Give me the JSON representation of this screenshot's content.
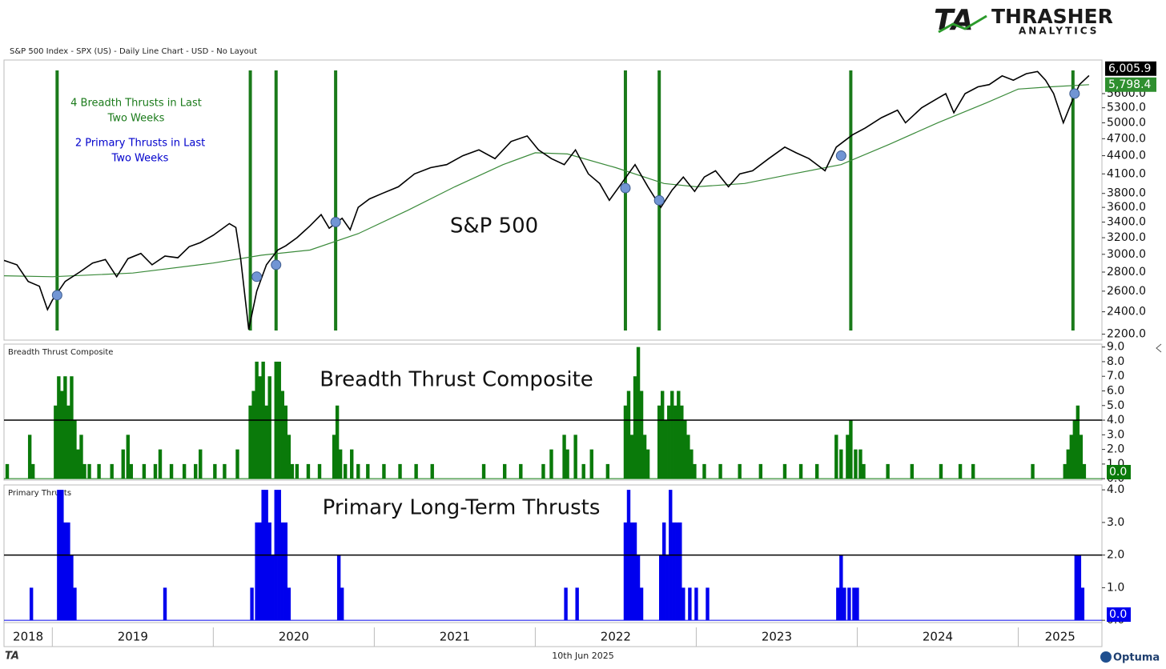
{
  "header": {
    "subtitle": "S&P 500 Index - SPX (US) - Daily Line Chart - USD - No Layout",
    "logo_mark": "TA",
    "logo": "THRASHER",
    "logo_sub": "ANALYTICS"
  },
  "chart_data": [
    {
      "type": "line",
      "title": "S&P 500",
      "log_scale": true,
      "annotations": [
        {
          "lines": [
            "4 Breadth Thrusts in Last",
            "Two Weeks"
          ],
          "color": "#1a7a1a"
        },
        {
          "lines": [
            "2 Primary Thrusts in Last",
            "Two Weeks"
          ],
          "color": "#0000cc"
        }
      ],
      "xlim": [
        2018.7,
        2025.52
      ],
      "ylim": [
        2150,
        6380
      ],
      "yticks": [
        {
          "value": 2200,
          "label": "2200.0"
        },
        {
          "value": 2400,
          "label": "2400.0"
        },
        {
          "value": 2600,
          "label": "2600.0"
        },
        {
          "value": 2800,
          "label": "2800.0"
        },
        {
          "value": 3000,
          "label": "3000.0"
        },
        {
          "value": 3200,
          "label": "3200.0"
        },
        {
          "value": 3400,
          "label": "3400.0"
        },
        {
          "value": 3600,
          "label": "3600.0"
        },
        {
          "value": 3800,
          "label": "3800.0"
        },
        {
          "value": 4100,
          "label": "4100.0"
        },
        {
          "value": 4400,
          "label": "4400.0"
        },
        {
          "value": 4700,
          "label": "4700.0"
        },
        {
          "value": 5000,
          "label": "5000.0"
        },
        {
          "value": 5300,
          "label": "5300.0"
        },
        {
          "value": 5600,
          "label": "5600.0"
        }
      ],
      "series": [
        {
          "color": "#000000",
          "badge_color": "#000000",
          "end_label": "6,005.9",
          "x": [
            2018.7,
            2018.78,
            2018.85,
            2018.92,
            2018.97,
            2019.0,
            2019.08,
            2019.17,
            2019.25,
            2019.33,
            2019.4,
            2019.47,
            2019.55,
            2019.62,
            2019.7,
            2019.78,
            2019.85,
            2019.92,
            2020.0,
            2020.1,
            2020.14,
            2020.17,
            2020.22,
            2020.27,
            2020.33,
            2020.4,
            2020.45,
            2020.52,
            2020.6,
            2020.67,
            2020.72,
            2020.8,
            2020.85,
            2020.9,
            2020.97,
            2021.05,
            2021.15,
            2021.25,
            2021.35,
            2021.45,
            2021.55,
            2021.65,
            2021.75,
            2021.85,
            2021.95,
            2022.02,
            2022.1,
            2022.18,
            2022.25,
            2022.33,
            2022.4,
            2022.46,
            2022.55,
            2022.62,
            2022.7,
            2022.78,
            2022.85,
            2022.92,
            2022.99,
            2023.05,
            2023.12,
            2023.2,
            2023.27,
            2023.35,
            2023.45,
            2023.55,
            2023.62,
            2023.7,
            2023.8,
            2023.87,
            2023.97,
            2024.05,
            2024.15,
            2024.25,
            2024.3,
            2024.4,
            2024.5,
            2024.55,
            2024.6,
            2024.67,
            2024.75,
            2024.82,
            2024.9,
            2024.97,
            2025.05,
            2025.12,
            2025.17,
            2025.22,
            2025.28,
            2025.33,
            2025.38,
            2025.44
          ],
          "values": [
            2930,
            2880,
            2700,
            2650,
            2420,
            2510,
            2700,
            2800,
            2900,
            2940,
            2750,
            2950,
            3010,
            2880,
            2980,
            2960,
            3090,
            3140,
            3230,
            3380,
            3330,
            2950,
            2240,
            2600,
            2880,
            3050,
            3100,
            3200,
            3350,
            3500,
            3320,
            3450,
            3300,
            3600,
            3720,
            3800,
            3900,
            4100,
            4200,
            4250,
            4400,
            4500,
            4350,
            4650,
            4750,
            4500,
            4350,
            4250,
            4500,
            4100,
            3950,
            3700,
            4000,
            4250,
            3900,
            3600,
            3850,
            4050,
            3830,
            4050,
            4150,
            3900,
            4100,
            4150,
            4350,
            4550,
            4450,
            4350,
            4150,
            4550,
            4770,
            4900,
            5100,
            5250,
            5000,
            5300,
            5500,
            5600,
            5200,
            5600,
            5750,
            5800,
            6000,
            5900,
            6050,
            6100,
            5900,
            5600,
            5000,
            5400,
            5800,
            6005.9
          ]
        },
        {
          "color": "#3a8a3a",
          "badge_color": "#2f8f2f",
          "end_label": "5,798.4",
          "x": [
            2018.7,
            2019.0,
            2019.5,
            2020.0,
            2020.3,
            2020.6,
            2020.9,
            2021.2,
            2021.5,
            2021.8,
            2022.0,
            2022.2,
            2022.5,
            2022.8,
            2023.0,
            2023.3,
            2023.6,
            2023.9,
            2024.2,
            2024.5,
            2024.8,
            2025.0,
            2025.2,
            2025.44
          ],
          "values": [
            2760,
            2750,
            2790,
            2900,
            2990,
            3050,
            3250,
            3550,
            3900,
            4250,
            4450,
            4430,
            4200,
            3950,
            3900,
            3950,
            4100,
            4250,
            4600,
            5000,
            5400,
            5700,
            5750,
            5798.4
          ]
        }
      ],
      "thrusts": {
        "color": "#1a7a1a",
        "dot_color": "#7195d4",
        "x": [
          2019.03,
          2020.27,
          2020.39,
          2020.76,
          2022.56,
          2022.77,
          2023.9,
          2025.35
        ],
        "values": [
          2560,
          2750,
          2880,
          3400,
          3880,
          3700,
          4400,
          5600
        ],
        "line_x": [
          2019.03,
          2020.23,
          2020.39,
          2020.76,
          2022.56,
          2022.77,
          2023.96,
          2025.34
        ]
      }
    },
    {
      "type": "bar",
      "title": "Breadth Thrust Composite",
      "label": "Breadth Thrust Composite",
      "color": "#0a7a0a",
      "threshold": 4,
      "end_label": "0.0",
      "xlim": [
        2018.7,
        2025.52
      ],
      "ylim": [
        -0.1,
        9.2
      ],
      "yticks": [
        {
          "value": 0,
          "label": "0.0"
        },
        {
          "value": 1,
          "label": "1.0"
        },
        {
          "value": 2,
          "label": "2.0"
        },
        {
          "value": 3,
          "label": "3.0"
        },
        {
          "value": 4,
          "label": "4.0"
        },
        {
          "value": 5,
          "label": "5.0"
        },
        {
          "value": 6,
          "label": "6.0"
        },
        {
          "value": 7,
          "label": "7.0"
        },
        {
          "value": 8,
          "label": "8.0"
        },
        {
          "value": 9,
          "label": "9.0"
        }
      ],
      "x": [
        2018.72,
        2018.86,
        2018.88,
        2019.02,
        2019.04,
        2019.06,
        2019.08,
        2019.1,
        2019.12,
        2019.14,
        2019.16,
        2019.18,
        2019.2,
        2019.23,
        2019.29,
        2019.37,
        2019.44,
        2019.47,
        2019.49,
        2019.57,
        2019.64,
        2019.67,
        2019.74,
        2019.82,
        2019.89,
        2019.92,
        2020.01,
        2020.07,
        2020.15,
        2020.23,
        2020.25,
        2020.27,
        2020.29,
        2020.31,
        2020.33,
        2020.35,
        2020.39,
        2020.41,
        2020.43,
        2020.45,
        2020.47,
        2020.49,
        2020.52,
        2020.59,
        2020.66,
        2020.75,
        2020.77,
        2020.79,
        2020.82,
        2020.86,
        2020.9,
        2020.96,
        2021.06,
        2021.16,
        2021.26,
        2021.36,
        2021.68,
        2021.81,
        2021.91,
        2022.05,
        2022.1,
        2022.18,
        2022.2,
        2022.25,
        2022.3,
        2022.35,
        2022.45,
        2022.56,
        2022.58,
        2022.6,
        2022.62,
        2022.64,
        2022.66,
        2022.68,
        2022.7,
        2022.77,
        2022.79,
        2022.81,
        2022.83,
        2022.85,
        2022.87,
        2022.89,
        2022.91,
        2022.93,
        2022.95,
        2022.97,
        2022.99,
        2023.05,
        2023.15,
        2023.27,
        2023.4,
        2023.55,
        2023.65,
        2023.75,
        2023.87,
        2023.9,
        2023.94,
        2023.96,
        2023.99,
        2024.02,
        2024.04,
        2024.19,
        2024.34,
        2024.52,
        2024.64,
        2024.72,
        2025.09,
        2025.29,
        2025.31,
        2025.33,
        2025.35,
        2025.37,
        2025.39,
        2025.41,
        2025.44
      ],
      "values": [
        1,
        3,
        1,
        5,
        7,
        6,
        7,
        5,
        7,
        4,
        2,
        3,
        1,
        1,
        1,
        1,
        2,
        3,
        1,
        1,
        1,
        2,
        1,
        1,
        1,
        2,
        1,
        1,
        2,
        5,
        6,
        8,
        7,
        8,
        5,
        7,
        8,
        8,
        6,
        5,
        3,
        1,
        1,
        1,
        1,
        3,
        5,
        2,
        1,
        2,
        1,
        1,
        1,
        1,
        1,
        1,
        1,
        1,
        1,
        1,
        2,
        3,
        2,
        3,
        1,
        2,
        1,
        5,
        6,
        3,
        7,
        9,
        6,
        3,
        2,
        5,
        6,
        4,
        5,
        6,
        5,
        6,
        5,
        4,
        3,
        2,
        1,
        1,
        1,
        1,
        1,
        1,
        1,
        1,
        3,
        2,
        3,
        4,
        2,
        2,
        1,
        1,
        1,
        1,
        1,
        1,
        1,
        1,
        2,
        3,
        4,
        5,
        3,
        1,
        0
      ]
    },
    {
      "type": "bar",
      "title": "Primary Long-Term Thrusts",
      "label": "Primary Thrusts",
      "color": "#0000ee",
      "threshold": 2,
      "end_label": "0.0",
      "xlim": [
        2018.7,
        2025.52
      ],
      "ylim": [
        -0.07,
        4.15
      ],
      "yticks": [
        {
          "value": 0,
          "label": "0.0"
        },
        {
          "value": 1,
          "label": "1.0"
        },
        {
          "value": 2,
          "label": "2.0"
        },
        {
          "value": 3,
          "label": "3.0"
        },
        {
          "value": 4,
          "label": "4.0"
        }
      ],
      "xticks": [
        2018,
        2019,
        2020,
        2021,
        2022,
        2023,
        2024,
        2025
      ],
      "x": [
        2018.87,
        2019.04,
        2019.06,
        2019.08,
        2019.1,
        2019.12,
        2019.14,
        2019.7,
        2020.24,
        2020.27,
        2020.29,
        2020.31,
        2020.33,
        2020.35,
        2020.37,
        2020.39,
        2020.41,
        2020.43,
        2020.45,
        2020.47,
        2020.78,
        2020.8,
        2022.19,
        2022.26,
        2022.56,
        2022.58,
        2022.6,
        2022.62,
        2022.64,
        2022.66,
        2022.78,
        2022.8,
        2022.82,
        2022.84,
        2022.86,
        2022.88,
        2022.9,
        2022.92,
        2022.96,
        2023.0,
        2023.07,
        2023.88,
        2023.9,
        2023.92,
        2023.95,
        2023.98,
        2024.0,
        2025.36,
        2025.38,
        2025.4,
        2025.44
      ],
      "values": [
        1,
        4,
        4,
        3,
        3,
        2,
        1,
        1,
        1,
        3,
        3,
        4,
        4,
        3,
        2,
        4,
        4,
        3,
        3,
        1,
        2,
        1,
        1,
        1,
        3,
        4,
        3,
        3,
        2,
        1,
        2,
        3,
        2,
        4,
        3,
        3,
        3,
        1,
        1,
        1,
        1,
        1,
        2,
        1,
        1,
        1,
        1,
        2,
        2,
        1,
        0
      ]
    }
  ],
  "footer": {
    "mark": "TA",
    "date": "10th Jun 2025",
    "brand": "Optuma"
  }
}
